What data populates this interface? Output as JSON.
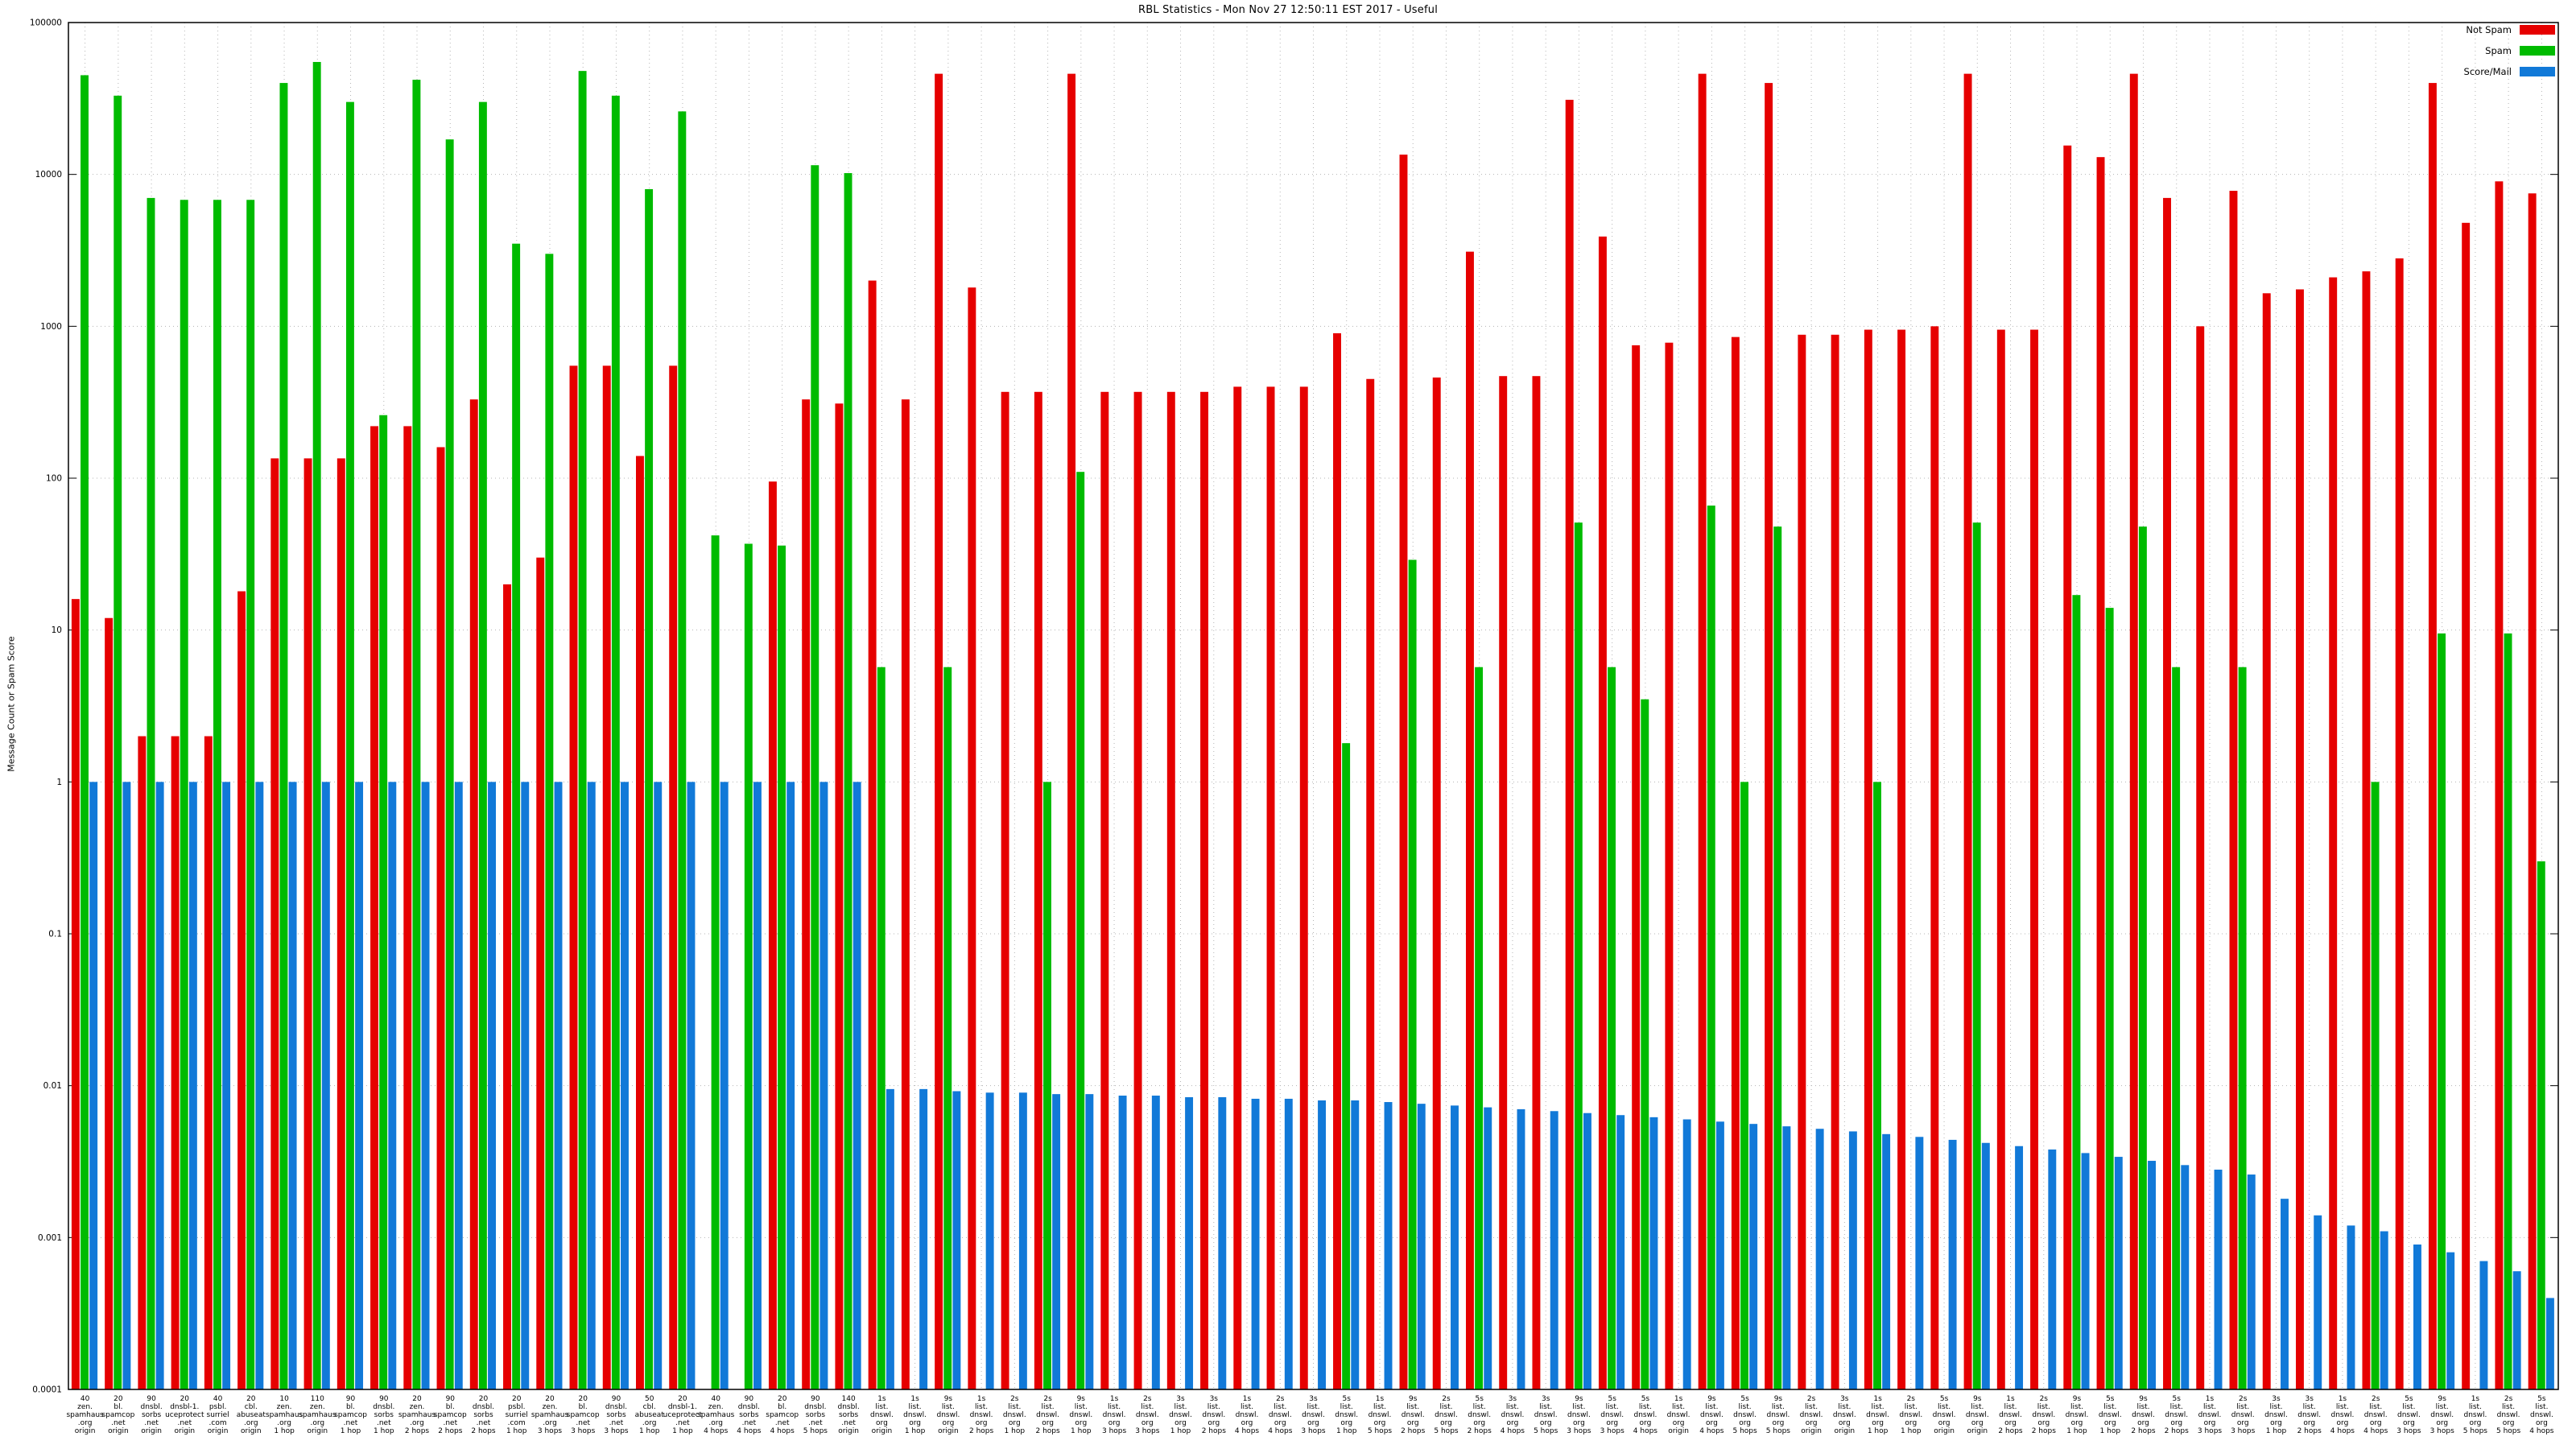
{
  "chart_data": {
    "type": "bar",
    "title": "RBL Statistics - Mon Nov 27 12:50:11 EST 2017 - Useful",
    "ylabel": "Message Count or Spam Score",
    "yscale": "log",
    "ylim": [
      0.0001,
      100000
    ],
    "yticks": [
      "100000",
      "10000",
      "1000",
      "100",
      "10",
      "1",
      "0.1",
      "0.01",
      "0.001",
      "0.0001"
    ],
    "grid": {
      "horizontal": true,
      "vertical": true
    },
    "legend_position": "top-right",
    "colors": {
      "grid": "#b4b4b4",
      "axis": "#000000",
      "background": "#ffffff"
    },
    "categories": [
      [
        "40",
        "zen.",
        "spamhaus",
        ".org",
        "origin"
      ],
      [
        "20",
        "bl.",
        "spamcop",
        ".net",
        "origin"
      ],
      [
        "90",
        "dnsbl.",
        "sorbs",
        ".net",
        "origin"
      ],
      [
        "20",
        "dnsbl-1.",
        "uceprotect",
        ".net",
        "origin"
      ],
      [
        "40",
        "psbl.",
        "surriel",
        ".com",
        "origin"
      ],
      [
        "20",
        "cbl.",
        "abuseat",
        ".org",
        "origin"
      ],
      [
        "10",
        "zen.",
        "spamhaus",
        ".org",
        "1 hop"
      ],
      [
        "110",
        "zen.",
        "spamhaus",
        ".org",
        "origin"
      ],
      [
        "90",
        "bl.",
        "spamcop",
        ".net",
        "1 hop"
      ],
      [
        "90",
        "dnsbl.",
        "sorbs",
        ".net",
        "1 hop"
      ],
      [
        "20",
        "zen.",
        "spamhaus",
        ".org",
        "2 hops"
      ],
      [
        "90",
        "bl.",
        "spamcop",
        ".net",
        "2 hops"
      ],
      [
        "20",
        "dnsbl.",
        "sorbs",
        ".net",
        "2 hops"
      ],
      [
        "20",
        "psbl.",
        "surriel",
        ".com",
        "1 hop"
      ],
      [
        "20",
        "zen.",
        "spamhaus",
        ".org",
        "3 hops"
      ],
      [
        "20",
        "bl.",
        "spamcop",
        ".net",
        "3 hops"
      ],
      [
        "90",
        "dnsbl.",
        "sorbs",
        ".net",
        "3 hops"
      ],
      [
        "50",
        "cbl.",
        "abuseat",
        ".org",
        "1 hop"
      ],
      [
        "20",
        "dnsbl-1.",
        "uceprotect",
        ".net",
        "1 hop"
      ],
      [
        "40",
        "zen.",
        "spamhaus",
        ".org",
        "4 hops"
      ],
      [
        "90",
        "dnsbl.",
        "sorbs",
        ".net",
        "4 hops"
      ],
      [
        "20",
        "bl.",
        "spamcop",
        ".net",
        "4 hops"
      ],
      [
        "90",
        "dnsbl.",
        "sorbs",
        ".net",
        "5 hops"
      ],
      [
        "140",
        "dnsbl.",
        "sorbs",
        ".net",
        "origin"
      ],
      [
        "1s",
        "list.",
        "dnswl.",
        "org",
        "origin"
      ],
      [
        "1s",
        "list.",
        "dnswl.",
        "org",
        "1 hop"
      ],
      [
        "9s",
        "list.",
        "dnswl.",
        "org",
        "origin"
      ],
      [
        "1s",
        "list.",
        "dnswl.",
        "org",
        "2 hops"
      ],
      [
        "2s",
        "list.",
        "dnswl.",
        "org",
        "1 hop"
      ],
      [
        "2s",
        "list.",
        "dnswl.",
        "org",
        "2 hops"
      ],
      [
        "9s",
        "list.",
        "dnswl.",
        "org",
        "1 hop"
      ],
      [
        "1s",
        "list.",
        "dnswl.",
        "org",
        "3 hops"
      ],
      [
        "2s",
        "list.",
        "dnswl.",
        "org",
        "3 hops"
      ],
      [
        "3s",
        "list.",
        "dnswl.",
        "org",
        "1 hop"
      ],
      [
        "3s",
        "list.",
        "dnswl.",
        "org",
        "2 hops"
      ],
      [
        "1s",
        "list.",
        "dnswl.",
        "org",
        "4 hops"
      ],
      [
        "2s",
        "list.",
        "dnswl.",
        "org",
        "4 hops"
      ],
      [
        "3s",
        "list.",
        "dnswl.",
        "org",
        "3 hops"
      ],
      [
        "5s",
        "list.",
        "dnswl.",
        "org",
        "1 hop"
      ],
      [
        "1s",
        "list.",
        "dnswl.",
        "org",
        "5 hops"
      ],
      [
        "9s",
        "list.",
        "dnswl.",
        "org",
        "2 hops"
      ],
      [
        "2s",
        "list.",
        "dnswl.",
        "org",
        "5 hops"
      ],
      [
        "5s",
        "list.",
        "dnswl.",
        "org",
        "2 hops"
      ],
      [
        "3s",
        "list.",
        "dnswl.",
        "org",
        "4 hops"
      ],
      [
        "3s",
        "list.",
        "dnswl.",
        "org",
        "5 hops"
      ],
      [
        "9s",
        "list.",
        "dnswl.",
        "org",
        "3 hops"
      ],
      [
        "5s",
        "list.",
        "dnswl.",
        "org",
        "3 hops"
      ],
      [
        "5s",
        "list.",
        "dnswl.",
        "org",
        "4 hops"
      ],
      [
        "1s",
        "list.",
        "dnswl.",
        "org",
        "origin"
      ],
      [
        "9s",
        "list.",
        "dnswl.",
        "org",
        "4 hops"
      ],
      [
        "5s",
        "list.",
        "dnswl.",
        "org",
        "5 hops"
      ],
      [
        "9s",
        "list.",
        "dnswl.",
        "org",
        "5 hops"
      ],
      [
        "2s",
        "list.",
        "dnswl.",
        "org",
        "origin"
      ],
      [
        "3s",
        "list.",
        "dnswl.",
        "org",
        "origin"
      ],
      [
        "1s",
        "list.",
        "dnswl.",
        "org",
        "1 hop"
      ],
      [
        "2s",
        "list.",
        "dnswl.",
        "org",
        "1 hop"
      ],
      [
        "5s",
        "list.",
        "dnswl.",
        "org",
        "origin"
      ],
      [
        "9s",
        "list.",
        "dnswl.",
        "org",
        "origin"
      ],
      [
        "1s",
        "list.",
        "dnswl.",
        "org",
        "2 hops"
      ],
      [
        "2s",
        "list.",
        "dnswl.",
        "org",
        "2 hops"
      ],
      [
        "9s",
        "list.",
        "dnswl.",
        "org",
        "1 hop"
      ],
      [
        "5s",
        "list.",
        "dnswl.",
        "org",
        "1 hop"
      ],
      [
        "9s",
        "list.",
        "dnswl.",
        "org",
        "2 hops"
      ],
      [
        "5s",
        "list.",
        "dnswl.",
        "org",
        "2 hops"
      ],
      [
        "1s",
        "list.",
        "dnswl.",
        "org",
        "3 hops"
      ],
      [
        "2s",
        "list.",
        "dnswl.",
        "org",
        "3 hops"
      ],
      [
        "3s",
        "list.",
        "dnswl.",
        "org",
        "1 hop"
      ],
      [
        "3s",
        "list.",
        "dnswl.",
        "org",
        "2 hops"
      ],
      [
        "1s",
        "list.",
        "dnswl.",
        "org",
        "4 hops"
      ],
      [
        "2s",
        "list.",
        "dnswl.",
        "org",
        "4 hops"
      ],
      [
        "5s",
        "list.",
        "dnswl.",
        "org",
        "3 hops"
      ],
      [
        "9s",
        "list.",
        "dnswl.",
        "org",
        "3 hops"
      ],
      [
        "1s",
        "list.",
        "dnswl.",
        "org",
        "5 hops"
      ],
      [
        "2s",
        "list.",
        "dnswl.",
        "org",
        "5 hops"
      ],
      [
        "5s",
        "list.",
        "dnswl.",
        "org",
        "4 hops"
      ]
    ],
    "series": [
      {
        "name": "Not Spam",
        "color": "#e60000",
        "values": [
          16,
          12,
          2,
          2,
          2,
          18,
          135,
          135,
          135,
          220,
          220,
          160,
          330,
          20,
          30,
          550,
          550,
          140,
          550,
          null,
          null,
          95,
          330,
          310,
          2000,
          330,
          46000,
          1800,
          370,
          370,
          46000,
          370,
          370,
          370,
          370,
          400,
          400,
          400,
          900,
          450,
          13500,
          460,
          3100,
          470,
          470,
          31000,
          3900,
          750,
          780,
          46000,
          850,
          40000,
          880,
          880,
          950,
          950,
          1000,
          46000,
          950,
          950,
          15500,
          13000,
          46000,
          7000,
          1000,
          7800,
          1650,
          1750,
          2100,
          2300,
          2800,
          40000,
          4800,
          9000,
          7500
        ]
      },
      {
        "name": "Spam",
        "color": "#00bb00",
        "values": [
          45000,
          33000,
          7000,
          6800,
          6800,
          6800,
          40000,
          55000,
          30000,
          260,
          42000,
          17000,
          30000,
          3500,
          3000,
          48000,
          33000,
          8000,
          26000,
          42,
          37,
          36,
          11500,
          10200,
          5.7,
          null,
          5.7,
          null,
          null,
          1,
          110,
          null,
          null,
          null,
          null,
          null,
          null,
          null,
          1.8,
          null,
          29,
          null,
          5.7,
          null,
          null,
          51,
          5.7,
          3.5,
          null,
          66,
          1,
          48,
          null,
          null,
          1,
          null,
          null,
          51,
          null,
          null,
          17,
          14,
          48,
          5.7,
          null,
          5.7,
          null,
          null,
          null,
          1,
          null,
          9.5,
          null,
          9.5,
          0.3
        ]
      },
      {
        "name": "Score/Mail",
        "color": "#1179d8",
        "values": [
          1,
          1,
          1,
          1,
          1,
          1,
          1,
          1,
          1,
          1,
          1,
          1,
          1,
          1,
          1,
          1,
          1,
          1,
          1,
          1,
          1,
          1,
          1,
          1,
          0.0095,
          0.0095,
          0.0092,
          0.009,
          0.009,
          0.0088,
          0.0088,
          0.0086,
          0.0086,
          0.0084,
          0.0084,
          0.0082,
          0.0082,
          0.008,
          0.008,
          0.0078,
          0.0076,
          0.0074,
          0.0072,
          0.007,
          0.0068,
          0.0066,
          0.0064,
          0.0062,
          0.006,
          0.0058,
          0.0056,
          0.0054,
          0.0052,
          0.005,
          0.0048,
          0.0046,
          0.0044,
          0.0042,
          0.004,
          0.0038,
          0.0036,
          0.0034,
          0.0032,
          0.003,
          0.0028,
          0.0026,
          0.0018,
          0.0014,
          0.0012,
          0.0011,
          0.0009,
          0.0008,
          0.0007,
          0.0006,
          0.0004
        ]
      }
    ]
  }
}
